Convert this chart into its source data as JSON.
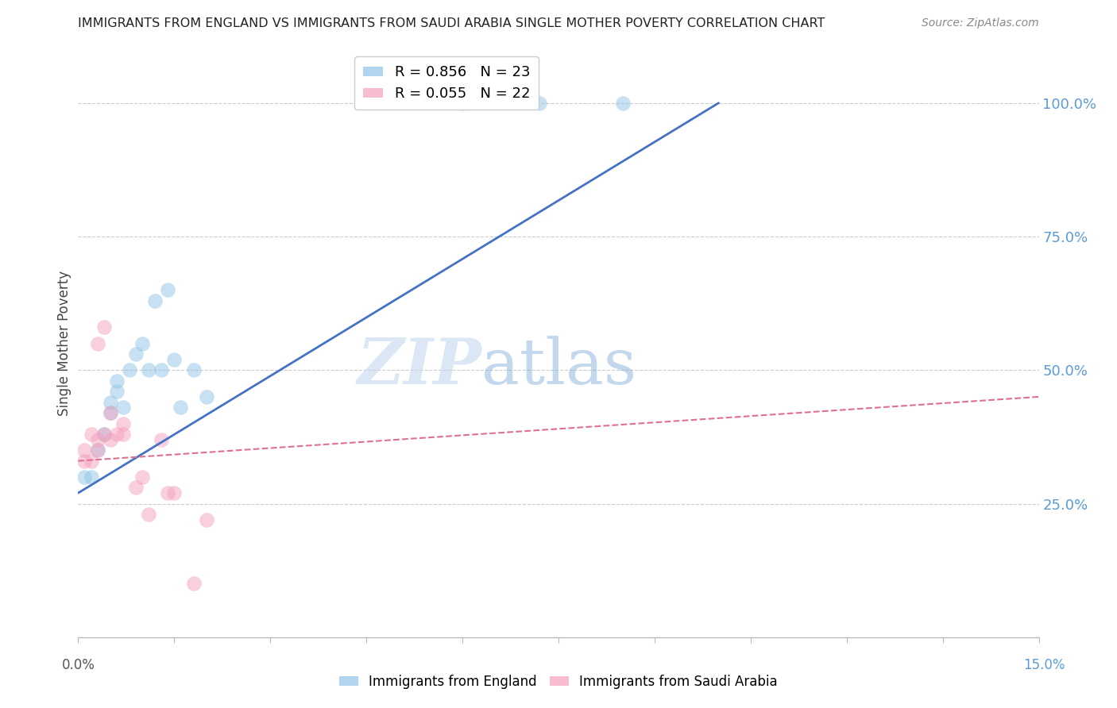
{
  "title": "IMMIGRANTS FROM ENGLAND VS IMMIGRANTS FROM SAUDI ARABIA SINGLE MOTHER POVERTY CORRELATION CHART",
  "source": "Source: ZipAtlas.com",
  "ylabel": "Single Mother Poverty",
  "england_color": "#90c4e8",
  "saudi_color": "#f4a0bc",
  "england_line_color": "#4472c4",
  "saudi_line_color": "#e07090",
  "england_x": [
    0.001,
    0.002,
    0.003,
    0.004,
    0.005,
    0.005,
    0.006,
    0.006,
    0.007,
    0.008,
    0.009,
    0.01,
    0.011,
    0.012,
    0.013,
    0.014,
    0.015,
    0.016,
    0.018,
    0.02,
    0.06,
    0.072,
    0.085
  ],
  "england_y": [
    0.3,
    0.3,
    0.35,
    0.38,
    0.42,
    0.44,
    0.46,
    0.48,
    0.43,
    0.5,
    0.53,
    0.55,
    0.5,
    0.63,
    0.5,
    0.65,
    0.52,
    0.43,
    0.5,
    0.45,
    1.0,
    1.0,
    1.0
  ],
  "saudi_x": [
    0.001,
    0.001,
    0.002,
    0.002,
    0.003,
    0.003,
    0.003,
    0.004,
    0.004,
    0.005,
    0.005,
    0.006,
    0.007,
    0.007,
    0.009,
    0.01,
    0.011,
    0.013,
    0.014,
    0.015,
    0.018,
    0.02
  ],
  "saudi_y": [
    0.33,
    0.35,
    0.33,
    0.38,
    0.35,
    0.37,
    0.55,
    0.58,
    0.38,
    0.37,
    0.42,
    0.38,
    0.4,
    0.38,
    0.28,
    0.3,
    0.23,
    0.37,
    0.27,
    0.27,
    0.1,
    0.22
  ],
  "england_line_x0": 0.0,
  "england_line_y0": 0.27,
  "england_line_x1": 0.1,
  "england_line_y1": 1.0,
  "saudi_line_x0": 0.0,
  "saudi_line_y0": 0.33,
  "saudi_line_x1": 0.15,
  "saudi_line_y1": 0.45,
  "xlim": [
    0.0,
    0.15
  ],
  "ylim": [
    0.0,
    1.1
  ],
  "marker_size": 180,
  "watermark_zip": "ZIP",
  "watermark_atlas": "atlas",
  "yticks": [
    0.25,
    0.5,
    0.75,
    1.0
  ],
  "ytick_labels": [
    "25.0%",
    "50.0%",
    "75.0%",
    "100.0%"
  ],
  "xtick_left_label": "0.0%",
  "xtick_right_label": "15.0%",
  "legend1_label": "R = 0.856   N = 23",
  "legend2_label": "R = 0.055   N = 22",
  "bottom_legend1": "Immigrants from England",
  "bottom_legend2": "Immigrants from Saudi Arabia"
}
